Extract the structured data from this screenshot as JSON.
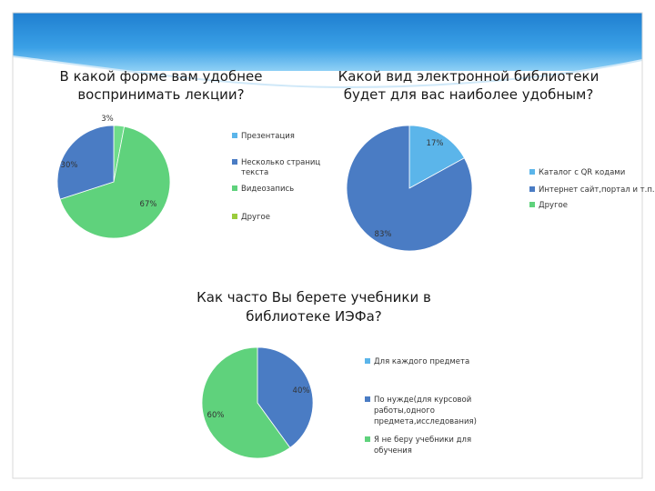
{
  "colors": {
    "blue_dark": "#4a7cc4",
    "light_blue": "#5bb5ea",
    "green": "#5fd27c",
    "header_blue": "#2a8fd9"
  },
  "chart_data": [
    {
      "type": "pie",
      "title": [
        "В какой форме вам удобнее",
        "воспринимать лекции?"
      ],
      "categories": [
        "Презентация",
        "Несколько страниц текста",
        "Видеозапись",
        "Другое"
      ],
      "values": [
        0,
        30,
        67,
        3
      ],
      "value_labels": [
        "",
        "30%",
        "67%",
        "3%"
      ],
      "legend": "right"
    },
    {
      "type": "pie",
      "title": [
        "Какой вид электронной библиотеки",
        "будет для вас наиболее удобным?"
      ],
      "categories": [
        "Каталог с QR кодами",
        "Интернет сайт,портал и т.п.",
        "Другое"
      ],
      "values": [
        17,
        83,
        0
      ],
      "value_labels": [
        "17%",
        "83%",
        ""
      ],
      "legend": "right"
    },
    {
      "type": "pie",
      "title": [
        "Как часто Вы берете учебники в",
        "библиотеке ИЭФа?"
      ],
      "categories": [
        "Для каждого предмета",
        "По нужде(для курсовой работы,одного предмета,исследования)",
        "Я не беру учебники для обучения"
      ],
      "legend_lines": [
        [
          "Для каждого предмета"
        ],
        [
          "По нужде(для курсовой",
          "работы,одного",
          "предмета,исследования)"
        ],
        [
          "Я не беру учебники для",
          "обучения"
        ]
      ],
      "values": [
        0,
        40,
        60
      ],
      "value_labels": [
        "",
        "40%",
        "60%"
      ],
      "legend": "right"
    }
  ]
}
